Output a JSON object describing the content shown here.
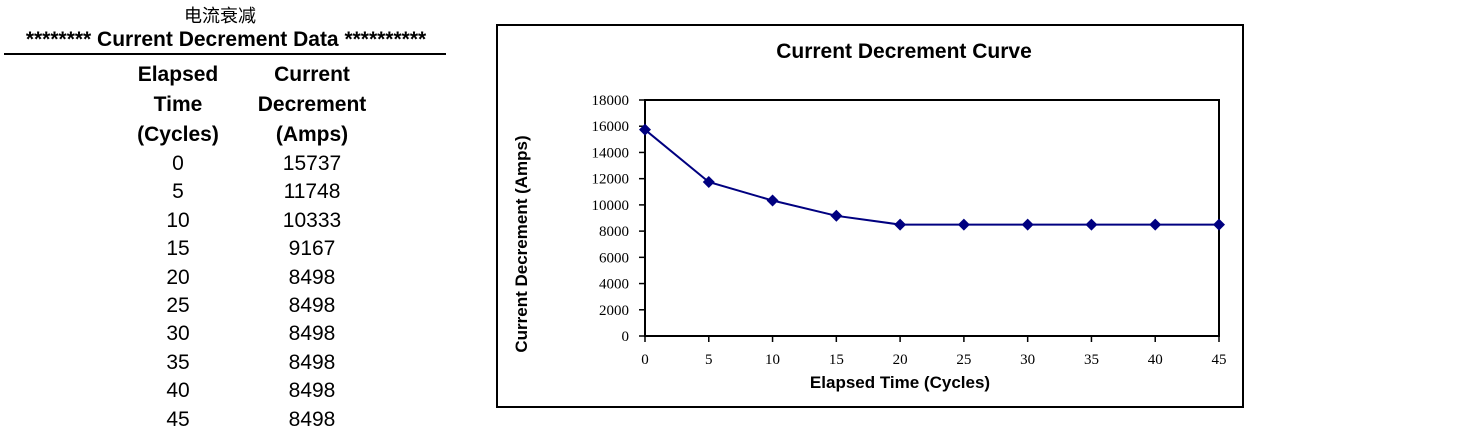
{
  "table": {
    "cn_title": "电流衰减",
    "title": "******** Current Decrement Data **********",
    "col_time": [
      "Elapsed",
      "Time",
      "(Cycles)"
    ],
    "col_amps": [
      "Current",
      "Decrement",
      "(Amps)"
    ],
    "rows": [
      {
        "time": "0",
        "amps": "15737"
      },
      {
        "time": "5",
        "amps": "11748"
      },
      {
        "time": "10",
        "amps": "10333"
      },
      {
        "time": "15",
        "amps": "9167"
      },
      {
        "time": "20",
        "amps": "8498"
      },
      {
        "time": "25",
        "amps": "8498"
      },
      {
        "time": "30",
        "amps": "8498"
      },
      {
        "time": "35",
        "amps": "8498"
      },
      {
        "time": "40",
        "amps": "8498"
      },
      {
        "time": "45",
        "amps": "8498"
      }
    ]
  },
  "chart_data": {
    "type": "line",
    "title": "Current Decrement Curve",
    "xlabel": "Elapsed Time (Cycles)",
    "ylabel": "Current Decrement (Amps)",
    "x": [
      0,
      5,
      10,
      15,
      20,
      25,
      30,
      35,
      40,
      45
    ],
    "series": [
      {
        "values": [
          15737,
          11748,
          10333,
          9167,
          8498,
          8498,
          8498,
          8498,
          8498,
          8498
        ],
        "color": "#000080",
        "marker": "diamond"
      }
    ],
    "xlim": [
      0,
      45
    ],
    "ylim": [
      0,
      18000
    ],
    "x_ticks": [
      "0",
      "5",
      "10",
      "15",
      "20",
      "25",
      "30",
      "35",
      "40",
      "45"
    ],
    "y_ticks": [
      "0",
      "2000",
      "4000",
      "6000",
      "8000",
      "10000",
      "12000",
      "14000",
      "16000",
      "18000"
    ],
    "grid": false,
    "legend": "none"
  }
}
